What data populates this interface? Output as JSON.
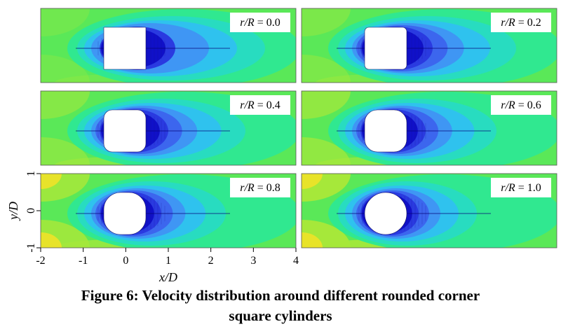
{
  "figure": {
    "caption_line1": "Figure 6: Velocity distribution around different rounded corner",
    "caption_line2": "square cylinders",
    "x_axis_label": "x/D",
    "y_axis_label": "y/D",
    "x_ticks": [
      "-2",
      "-1",
      "0",
      "1",
      "2",
      "3",
      "4"
    ],
    "y_ticks": [
      "1",
      "0",
      "-1"
    ],
    "x_tick_values": [
      -2,
      -1,
      0,
      1,
      2,
      3,
      4
    ],
    "y_tick_values": [
      1,
      0,
      -1
    ],
    "xlim": [
      -2,
      4
    ],
    "ylim": [
      -1,
      1
    ],
    "panel_label_prefix": "r/R",
    "panels": [
      {
        "ratio": 0.0,
        "value": "0.0"
      },
      {
        "ratio": 0.2,
        "value": "0.2"
      },
      {
        "ratio": 0.4,
        "value": "0.4"
      },
      {
        "ratio": 0.6,
        "value": "0.6"
      },
      {
        "ratio": 0.8,
        "value": "0.8"
      },
      {
        "ratio": 1.0,
        "value": "1.0"
      }
    ],
    "colors": {
      "contour_levels": [
        "#1010c8",
        "#2a3ae0",
        "#3c66ee",
        "#3f96f4",
        "#2fc2ee",
        "#28dcc0",
        "#30e890",
        "#5ae858",
        "#a6e83a",
        "#f0e228"
      ],
      "cylinder_fill": "#ffffff"
    }
  }
}
